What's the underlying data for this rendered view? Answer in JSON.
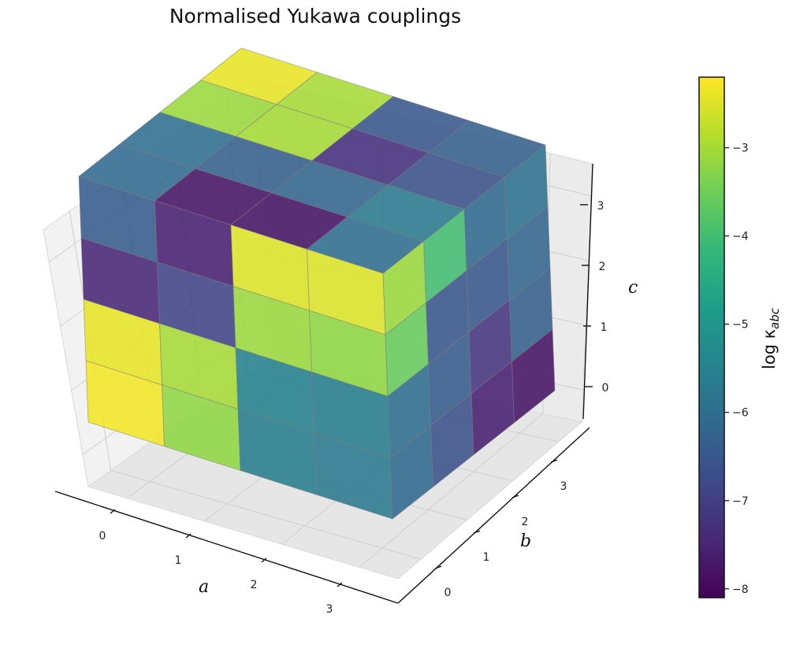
{
  "chart_data": {
    "type": "3d-voxel-heatmap",
    "title": "Normalised Yukawa couplings",
    "xlabel": "a",
    "ylabel": "b",
    "zlabel": "c",
    "x_ticks": [
      "0",
      "1",
      "2",
      "3"
    ],
    "y_ticks": [
      "0",
      "1",
      "2",
      "3"
    ],
    "z_ticks": [
      "0",
      "1",
      "2",
      "3"
    ],
    "colorbar": {
      "label": "log κ_abc",
      "label_main": "log κ",
      "label_sub": "abc",
      "colormap": "viridis",
      "range": [
        -8.1,
        -2.2
      ],
      "ticks": [
        "−3",
        "−4",
        "−5",
        "−6",
        "−7",
        "−8"
      ],
      "tick_values": [
        -3,
        -4,
        -5,
        -6,
        -7,
        -8
      ]
    },
    "colors": {
      "viridis": [
        "#440154",
        "#482878",
        "#3e4989",
        "#31688e",
        "#26828e",
        "#1f9e89",
        "#35b779",
        "#6ece58",
        "#b5de2b",
        "#fde725"
      ]
    },
    "voxel_face_values": {
      "front_face_a_by_c": [
        [
          -6.4,
          -7.6,
          -2.5,
          -2.5
        ],
        [
          -7.5,
          -6.9,
          -3.1,
          -3.2
        ],
        [
          -2.4,
          -3.0,
          -5.5,
          -5.6
        ],
        [
          -2.3,
          -3.2,
          -5.6,
          -5.7
        ]
      ],
      "right_face_b_by_c": [
        [
          -3.1,
          -4.0,
          -6.1,
          -5.9
        ],
        [
          -3.6,
          -6.5,
          -6.5,
          -6.2
        ],
        [
          -6.0,
          -6.4,
          -7.2,
          -6.3
        ],
        [
          -6.1,
          -6.6,
          -7.6,
          -7.8
        ]
      ],
      "top_face_a_by_b": [
        [
          -2.4,
          -3.0,
          -6.5,
          -6.3
        ],
        [
          -3.1,
          -3.0,
          -7.3,
          -6.6
        ],
        [
          -6.0,
          -6.3,
          -6.2,
          -5.7
        ],
        [
          -6.1,
          -7.8,
          -7.8,
          -6.0
        ]
      ]
    }
  }
}
